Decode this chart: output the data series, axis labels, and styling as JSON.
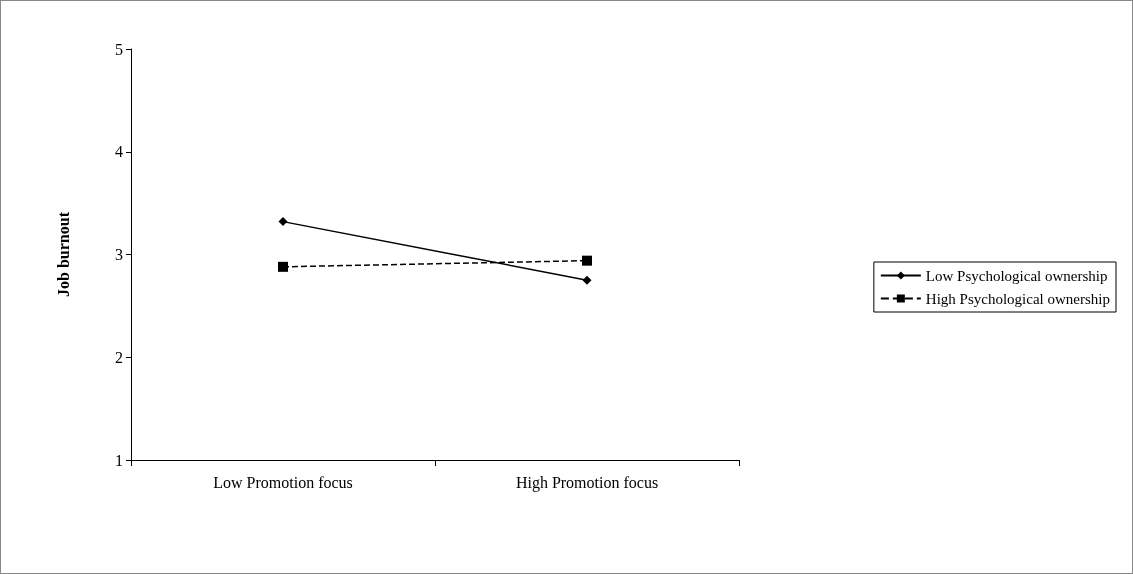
{
  "chart_data": {
    "type": "line",
    "ylabel": "Job burnout",
    "categories": [
      "Low Promotion focus",
      "High Promotion focus"
    ],
    "series": [
      {
        "name": "Low Psychological ownership",
        "color": "#000000",
        "values": [
          3.32,
          2.75
        ],
        "marker": "diamond",
        "line_style": "solid"
      },
      {
        "name": "High Psychological ownership",
        "color": "#000000",
        "values": [
          2.88,
          2.94
        ],
        "marker": "square",
        "line_style": "dashed"
      }
    ],
    "ylim": [
      1,
      5
    ],
    "yticks": [
      1,
      2,
      3,
      4,
      5
    ],
    "grid": false,
    "legend": "right"
  }
}
